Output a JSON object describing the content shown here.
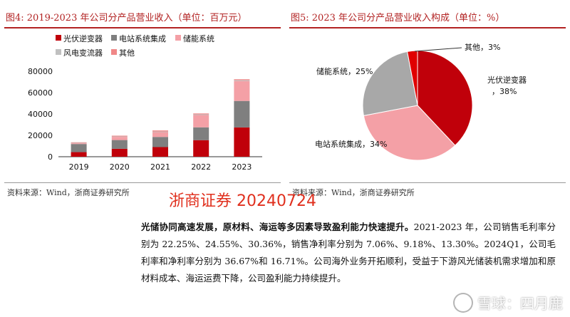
{
  "figure4": {
    "title": "图4:   2019-2023 年公司分产品营业收入（单位：百万元）",
    "source": "资料来源：Wind，浙商证券研究所"
  },
  "figure5": {
    "title": "图5:   2023 年公司分产品营业收入构成（单位：%）",
    "source": "资料来源：Wind，浙商证券研究所"
  },
  "watermark": {
    "text": "浙商证券 20240724",
    "color": "#e0301e"
  },
  "paragraph": {
    "lead": "光储协同高速发展，原材料、海运等多因素导致盈利能力快速提升。",
    "body": "2021-2023 年，公司销售毛利率分别为 22.25%、24.55%、30.36%，销售净利率分别为 7.06%、9.18%、13.30%。2024Q1，公司毛利率和净利率分别为 36.67%和 16.71%。公司海外业务开拓顺利，受益于下游风光储装机需求增加和原材料成本、海运运费下降，公司盈利能力持续提升。"
  },
  "xueqiu": {
    "text": "雪球：四月鹿"
  },
  "chart_data": [
    {
      "type": "bar",
      "stacked": true,
      "categories": [
        "2019",
        "2020",
        "2021",
        "2022",
        "2023"
      ],
      "series": [
        {
          "name": "光伏逆变器",
          "color": "#c0000a",
          "values": [
            4300,
            7400,
            9000,
            15500,
            27400
          ]
        },
        {
          "name": "电站系统集成",
          "color": "#7f7f7f",
          "values": [
            7600,
            8200,
            9500,
            12000,
            24800
          ]
        },
        {
          "name": "储能系统",
          "color": "#f4a0a6",
          "values": [
            700,
            3000,
            4500,
            11500,
            18600
          ]
        },
        {
          "name": "风电变流器",
          "color": "#c0c0c0",
          "values": [
            400,
            400,
            600,
            700,
            800
          ]
        },
        {
          "name": "其他",
          "color": "#f08888",
          "values": [
            500,
            700,
            1000,
            800,
            900
          ]
        }
      ],
      "yticks": [
        "0",
        "20000",
        "40000",
        "60000",
        "80000"
      ],
      "ylim": [
        0,
        80000
      ],
      "legend_position": "top-left",
      "grid": false
    },
    {
      "type": "pie",
      "slices": [
        {
          "name": "光伏逆变器",
          "label": "光伏逆变器\n，38%",
          "value": 38,
          "color": "#c0000a"
        },
        {
          "name": "电站系统集成",
          "label": "电站系统集成，34%",
          "value": 34,
          "color": "#f4a0a6"
        },
        {
          "name": "储能系统",
          "label": "储能系统，25%",
          "value": 25,
          "color": "#a8a8a8"
        },
        {
          "name": "其他",
          "label": "其他，3%",
          "value": 3,
          "color": "#e00000"
        }
      ]
    }
  ]
}
